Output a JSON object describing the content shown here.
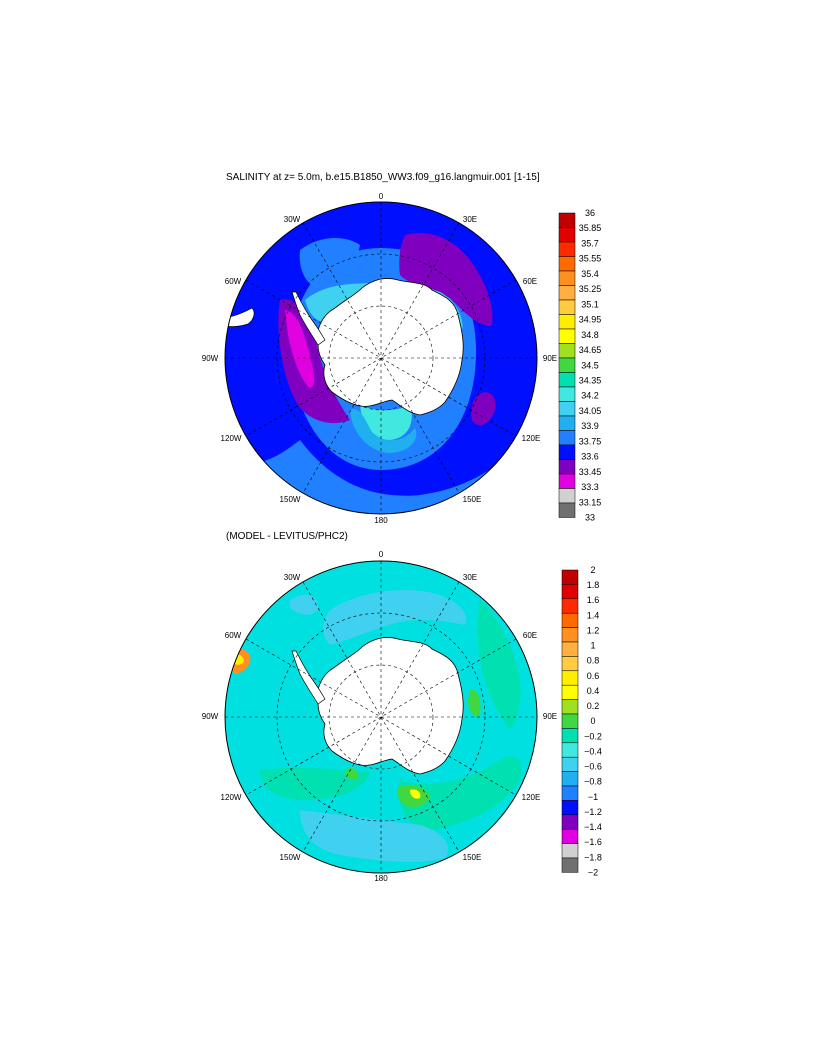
{
  "top": {
    "title": "SALINITY at z=   5.0m, b.e15.B1850_WW3.f09_g16.langmuir.001 [1-15]",
    "lon_labels": {
      "top": "0",
      "n30w": "30W",
      "n30e": "30E",
      "n60w": "60W",
      "n60e": "60E",
      "w90": "90W",
      "e90": "90E",
      "n120w": "120W",
      "n120e": "120E",
      "n150w": "150W",
      "n150e": "150E",
      "bottom": "180"
    },
    "colorbar": {
      "labels": [
        "36",
        "35.85",
        "35.7",
        "35.55",
        "35.4",
        "35.25",
        "35.1",
        "34.95",
        "34.8",
        "34.65",
        "34.5",
        "34.35",
        "34.2",
        "34.05",
        "33.9",
        "33.75",
        "33.6",
        "33.45",
        "33.3",
        "33.15",
        "33"
      ],
      "colors": [
        "#c00000",
        "#e00000",
        "#ff2a00",
        "#ff6a00",
        "#ff9020",
        "#ffb040",
        "#ffcc40",
        "#ffee00",
        "#ffff00",
        "#a0e020",
        "#40d840",
        "#00e0b0",
        "#40e8e0",
        "#40d0f0",
        "#20b0f0",
        "#2080ff",
        "#0010ff",
        "#8000c0",
        "#e000e0",
        "#d0d0d0",
        "#707070"
      ]
    }
  },
  "bottom": {
    "title": "(MODEL - LEVITUS/PHC2)",
    "lon_labels": {
      "top": "0",
      "n30w": "30W",
      "n30e": "30E",
      "n60w": "60W",
      "n60e": "60E",
      "w90": "90W",
      "e90": "90E",
      "n120w": "120W",
      "n120e": "120E",
      "n150w": "150W",
      "n150e": "150E",
      "bottom": "180"
    },
    "colorbar": {
      "labels": [
        "2",
        "1.8",
        "1.6",
        "1.4",
        "1.2",
        "1",
        "0.8",
        "0.6",
        "0.4",
        "0.2",
        "0",
        "−0.2",
        "−0.4",
        "−0.6",
        "−0.8",
        "−1",
        "−1.2",
        "−1.4",
        "−1.6",
        "−1.8",
        "−2"
      ],
      "colors": [
        "#c00000",
        "#e00000",
        "#ff2a00",
        "#ff6a00",
        "#ff9020",
        "#ffb040",
        "#ffcc40",
        "#ffee00",
        "#ffff00",
        "#a0e020",
        "#40d840",
        "#00e0b0",
        "#40e8e0",
        "#40d0f0",
        "#20b0f0",
        "#2080ff",
        "#0010ff",
        "#8000c0",
        "#e000e0",
        "#d0d0d0",
        "#707070"
      ]
    }
  }
}
